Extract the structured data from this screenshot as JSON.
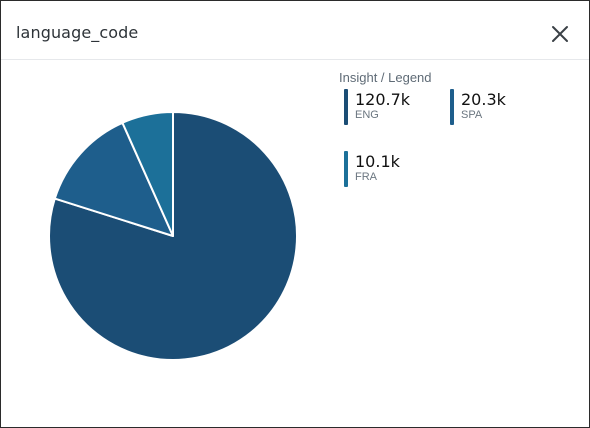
{
  "panel": {
    "title": "language_code"
  },
  "legend": {
    "title": "Insight / Legend"
  },
  "icons": {
    "close": "close-icon"
  },
  "colors": {
    "ENG": "#1b4d75",
    "SPA": "#1e5e8c",
    "FRA": "#1c7099",
    "separator": "#ffffff"
  },
  "chart_data": {
    "type": "pie",
    "title": "",
    "slices": [
      {
        "label": "ENG",
        "value": 120700,
        "display": "120.7k"
      },
      {
        "label": "SPA",
        "value": 20300,
        "display": "20.3k"
      },
      {
        "label": "FRA",
        "value": 10100,
        "display": "10.1k"
      }
    ],
    "start": "12 o'clock",
    "direction": "clockwise",
    "legend_placement": "right"
  }
}
